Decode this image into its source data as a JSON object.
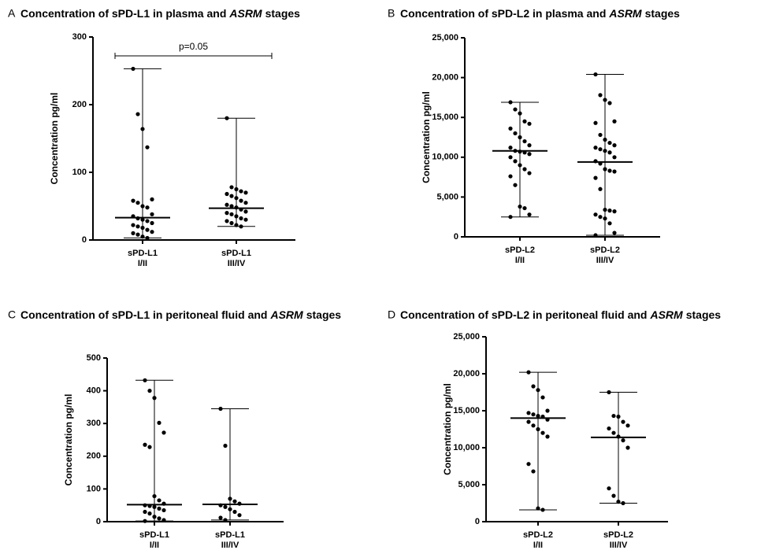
{
  "chart_data": [
    {
      "type": "dot",
      "label": "A",
      "title": [
        "Concentration of sPD-L1 in plasma and",
        "ASRM",
        "stages"
      ],
      "ylabel": "Concentration pg/ml",
      "ylim": [
        0,
        300
      ],
      "yticks": [
        0,
        100,
        200,
        300
      ],
      "categories": [
        [
          "sPD-L1",
          "I/II"
        ],
        [
          "sPD-L1",
          "III/IV"
        ]
      ],
      "values": [
        [
          253,
          186,
          164,
          137,
          60,
          58,
          55,
          50,
          48,
          38,
          35,
          32,
          30,
          28,
          25,
          22,
          20,
          18,
          15,
          12,
          10,
          8,
          5,
          3
        ],
        [
          180,
          78,
          75,
          72,
          70,
          68,
          65,
          62,
          58,
          55,
          52,
          50,
          48,
          45,
          42,
          40,
          38,
          35,
          32,
          30,
          28,
          25,
          22,
          20
        ]
      ],
      "medians": [
        33,
        47
      ],
      "annotation": "p=0.05",
      "color": "#000000"
    },
    {
      "type": "dot",
      "label": "B",
      "title": [
        "Concentration of sPD-L2 in plasma and",
        "ASRM",
        "stages"
      ],
      "ylabel": "Concentration pg/ml",
      "ylim": [
        0,
        25000
      ],
      "yticks": [
        0,
        {
          "value": 5000,
          "label": "5,000"
        },
        {
          "value": 10000,
          "label": "10,000"
        },
        {
          "value": 15000,
          "label": "15,000"
        },
        {
          "value": 20000,
          "label": "20,000"
        },
        {
          "value": 25000,
          "label": "25,000"
        }
      ],
      "categories": [
        [
          "sPD-L2",
          "I/II"
        ],
        [
          "sPD-L2",
          "III/IV"
        ]
      ],
      "values": [
        [
          16900,
          16000,
          15500,
          14500,
          14200,
          13600,
          13000,
          12500,
          12000,
          11500,
          11200,
          10800,
          10700,
          10600,
          10400,
          10000,
          9500,
          9000,
          8500,
          8000,
          7600,
          6500,
          3800,
          3600,
          2800,
          2500
        ],
        [
          20400,
          17800,
          17200,
          16800,
          14500,
          14300,
          12800,
          12200,
          11800,
          11500,
          11200,
          11000,
          10800,
          10600,
          10000,
          9500,
          9200,
          8500,
          8300,
          8200,
          7400,
          6000,
          3400,
          3300,
          3200,
          2800,
          2500,
          2300,
          1700,
          500,
          200
        ]
      ],
      "medians": [
        10800,
        9400
      ],
      "color": "#000000"
    },
    {
      "type": "dot",
      "label": "C",
      "title": [
        "Concentration of sPD-L1 in peritoneal fluid and",
        "ASRM",
        "stages"
      ],
      "ylabel": "Concentration pg/ml",
      "ylim": [
        0,
        500
      ],
      "yticks": [
        0,
        100,
        200,
        300,
        400,
        500
      ],
      "categories": [
        [
          "sPD-L1",
          "I/II"
        ],
        [
          "sPD-L1",
          "III/IV"
        ]
      ],
      "values": [
        [
          432,
          400,
          378,
          302,
          272,
          235,
          228,
          78,
          65,
          55,
          50,
          48,
          45,
          40,
          35,
          30,
          25,
          15,
          10,
          5,
          2
        ],
        [
          345,
          232,
          70,
          62,
          55,
          50,
          45,
          38,
          30,
          20,
          12,
          5
        ]
      ],
      "medians": [
        52,
        53
      ],
      "color": "#000000"
    },
    {
      "type": "dot",
      "label": "D",
      "title": [
        "Concentration of sPD-L2 in peritoneal fluid and",
        "ASRM",
        "stages"
      ],
      "ylabel": "Concentration pg/ml",
      "ylim": [
        0,
        25000
      ],
      "yticks": [
        0,
        {
          "value": 5000,
          "label": "5,000"
        },
        {
          "value": 10000,
          "label": "10,000"
        },
        {
          "value": 15000,
          "label": "15,000"
        },
        {
          "value": 20000,
          "label": "20,000"
        },
        {
          "value": 25000,
          "label": "25,000"
        }
      ],
      "categories": [
        [
          "sPD-L2",
          "I/II"
        ],
        [
          "sPD-L2",
          "III/IV"
        ]
      ],
      "values": [
        [
          20200,
          18300,
          17800,
          16800,
          15000,
          14700,
          14500,
          14300,
          14200,
          13800,
          13500,
          13000,
          12500,
          12000,
          11500,
          7800,
          6800,
          1800,
          1600
        ],
        [
          17500,
          14300,
          14200,
          13500,
          13000,
          12600,
          12000,
          11500,
          11000,
          10000,
          4500,
          3500,
          2700,
          2500
        ]
      ],
      "medians": [
        14000,
        11400
      ],
      "color": "#000000"
    }
  ]
}
